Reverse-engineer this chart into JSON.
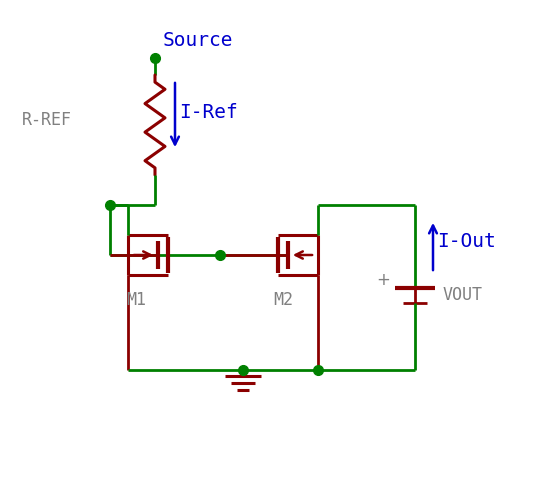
{
  "bg_color": "#ffffff",
  "wire_color": "#008000",
  "component_color": "#8B0000",
  "label_color_blue": "#0000CD",
  "label_color_gray": "#808080",
  "source_label": "Source",
  "rref_label": "R-REF",
  "iref_label": "I-Ref",
  "iout_label": "I-Out",
  "vout_label": "VOUT",
  "m1_label": "M1",
  "m2_label": "M2",
  "plus_label": "+"
}
